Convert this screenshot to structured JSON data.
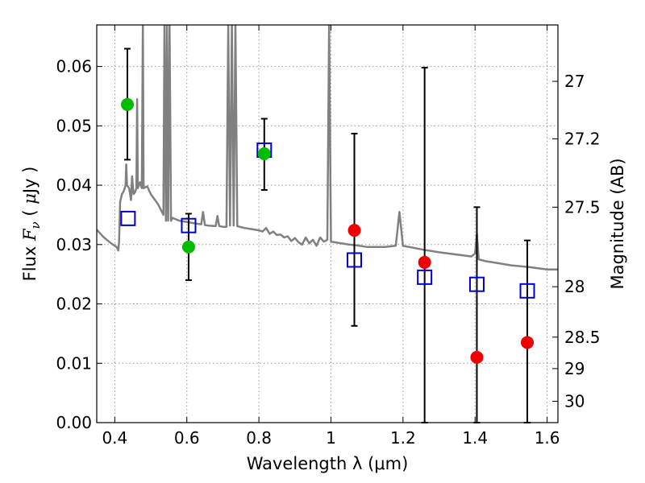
{
  "chart_data": {
    "type": "scatter",
    "title": "",
    "xlabel": "Wavelength  λ (μm)",
    "ylabel": "Flux  F_ν  ( μJy )",
    "y2label": "Magnitude (AB)",
    "xlim": [
      0.35,
      1.63
    ],
    "ylim": [
      0.0,
      0.067
    ],
    "grid": true,
    "x_ticks": [
      0.4,
      0.6,
      0.8,
      1.0,
      1.2,
      1.4,
      1.6
    ],
    "x_tick_labels": [
      "0.4",
      "0.6",
      "0.8",
      "1",
      "1.2",
      "1.4",
      "1.6"
    ],
    "y_ticks": [
      0.0,
      0.01,
      0.02,
      0.03,
      0.04,
      0.05,
      0.06
    ],
    "y_tick_labels": [
      "0.00",
      "0.01",
      "0.02",
      "0.03",
      "0.04",
      "0.05",
      "0.06"
    ],
    "y2_ticks": [
      {
        "label": "27",
        "flux": 0.0575
      },
      {
        "label": "27.2",
        "flux": 0.0478
      },
      {
        "label": "27.5",
        "flux": 0.0363
      },
      {
        "label": "28",
        "flux": 0.0229
      },
      {
        "label": "28.5",
        "flux": 0.0144
      },
      {
        "label": "29",
        "flux": 0.0091
      },
      {
        "label": "30",
        "flux": 0.0036
      }
    ],
    "colors": {
      "spectrum": "#808080",
      "model_points": "#0000cc",
      "green_points": "#00bb00",
      "red_points": "#ee0000",
      "errorbars": "#000000",
      "grid": "#999999"
    },
    "series": [
      {
        "kind": "line",
        "points": [
          [
            0.35,
            0.0325
          ],
          [
            0.37,
            0.0312
          ],
          [
            0.39,
            0.0302
          ],
          [
            0.405,
            0.0296
          ],
          [
            0.41,
            0.029
          ],
          [
            0.412,
            0.0305
          ],
          [
            0.415,
            0.0372
          ],
          [
            0.42,
            0.0385
          ],
          [
            0.425,
            0.039
          ],
          [
            0.43,
            0.04
          ],
          [
            0.432,
            0.0435
          ],
          [
            0.434,
            0.04
          ],
          [
            0.44,
            0.0395
          ],
          [
            0.445,
            0.0375
          ],
          [
            0.448,
            0.0415
          ],
          [
            0.452,
            0.0385
          ],
          [
            0.456,
            0.0388
          ],
          [
            0.46,
            0.0395
          ],
          [
            0.462,
            0.0545
          ],
          [
            0.464,
            0.0395
          ],
          [
            0.47,
            0.0405
          ],
          [
            0.475,
            0.0395
          ],
          [
            0.478,
            0.067
          ],
          [
            0.48,
            0.0395
          ],
          [
            0.49,
            0.0398
          ],
          [
            0.5,
            0.0385
          ],
          [
            0.52,
            0.0368
          ],
          [
            0.535,
            0.035
          ],
          [
            0.538,
            0.067
          ],
          [
            0.542,
            0.034
          ],
          [
            0.545,
            0.067
          ],
          [
            0.548,
            0.034
          ],
          [
            0.552,
            0.067
          ],
          [
            0.556,
            0.034
          ],
          [
            0.56,
            0.0345
          ],
          [
            0.58,
            0.034
          ],
          [
            0.6,
            0.0338
          ],
          [
            0.62,
            0.0336
          ],
          [
            0.64,
            0.0334
          ],
          [
            0.645,
            0.0355
          ],
          [
            0.65,
            0.0333
          ],
          [
            0.66,
            0.0332
          ],
          [
            0.68,
            0.0331
          ],
          [
            0.685,
            0.0348
          ],
          [
            0.69,
            0.0331
          ],
          [
            0.7,
            0.033
          ],
          [
            0.71,
            0.033
          ],
          [
            0.715,
            0.067
          ],
          [
            0.72,
            0.0332
          ],
          [
            0.725,
            0.067
          ],
          [
            0.73,
            0.0332
          ],
          [
            0.735,
            0.067
          ],
          [
            0.74,
            0.0331
          ],
          [
            0.76,
            0.0328
          ],
          [
            0.78,
            0.0326
          ],
          [
            0.8,
            0.0324
          ],
          [
            0.81,
            0.0322
          ],
          [
            0.82,
            0.0328
          ],
          [
            0.83,
            0.0318
          ],
          [
            0.84,
            0.0322
          ],
          [
            0.85,
            0.0316
          ],
          [
            0.86,
            0.0317
          ],
          [
            0.87,
            0.0312
          ],
          [
            0.88,
            0.0314
          ],
          [
            0.89,
            0.0306
          ],
          [
            0.9,
            0.0311
          ],
          [
            0.91,
            0.0304
          ],
          [
            0.92,
            0.03
          ],
          [
            0.93,
            0.0312
          ],
          [
            0.94,
            0.0302
          ],
          [
            0.95,
            0.0308
          ],
          [
            0.96,
            0.0298
          ],
          [
            0.97,
            0.0312
          ],
          [
            0.98,
            0.0305
          ],
          [
            0.99,
            0.0308
          ],
          [
            0.995,
            0.067
          ],
          [
            1.0,
            0.0305
          ],
          [
            1.02,
            0.0303
          ],
          [
            1.05,
            0.03
          ],
          [
            1.08,
            0.0298
          ],
          [
            1.1,
            0.0296
          ],
          [
            1.15,
            0.0296
          ],
          [
            1.18,
            0.0298
          ],
          [
            1.19,
            0.0355
          ],
          [
            1.2,
            0.0298
          ],
          [
            1.25,
            0.0292
          ],
          [
            1.3,
            0.0287
          ],
          [
            1.35,
            0.0283
          ],
          [
            1.39,
            0.028
          ],
          [
            1.4,
            0.0285
          ],
          [
            1.405,
            0.0318
          ],
          [
            1.41,
            0.0275
          ],
          [
            1.43,
            0.0272
          ],
          [
            1.45,
            0.027
          ],
          [
            1.5,
            0.0265
          ],
          [
            1.55,
            0.0262
          ],
          [
            1.6,
            0.0258
          ],
          [
            1.63,
            0.0258
          ]
        ]
      },
      {
        "kind": "errorbar",
        "points": [
          {
            "x": 0.435,
            "lo": 0.0443,
            "hi": 0.063
          },
          {
            "x": 0.605,
            "lo": 0.024,
            "hi": 0.0352
          },
          {
            "x": 0.815,
            "lo": 0.0392,
            "hi": 0.0512
          },
          {
            "x": 1.065,
            "lo": 0.0163,
            "hi": 0.0487
          },
          {
            "x": 1.26,
            "lo": 0.0,
            "hi": 0.0598
          },
          {
            "x": 1.405,
            "lo": 0.0,
            "hi": 0.0363
          },
          {
            "x": 1.545,
            "lo": 0.0,
            "hi": 0.0307
          }
        ]
      },
      {
        "kind": "square",
        "points": [
          [
            0.437,
            0.0344
          ],
          [
            0.605,
            0.0332
          ],
          [
            0.815,
            0.0459
          ],
          [
            1.065,
            0.0274
          ],
          [
            1.26,
            0.0245
          ],
          [
            1.405,
            0.0233
          ],
          [
            1.545,
            0.0222
          ]
        ]
      },
      {
        "kind": "green-dot",
        "points": [
          [
            0.435,
            0.0536
          ],
          [
            0.605,
            0.0296
          ],
          [
            0.815,
            0.0453
          ]
        ]
      },
      {
        "kind": "red-dot",
        "points": [
          [
            1.065,
            0.0324
          ],
          [
            1.26,
            0.027
          ],
          [
            1.405,
            0.011
          ],
          [
            1.545,
            0.0135
          ]
        ]
      }
    ]
  }
}
